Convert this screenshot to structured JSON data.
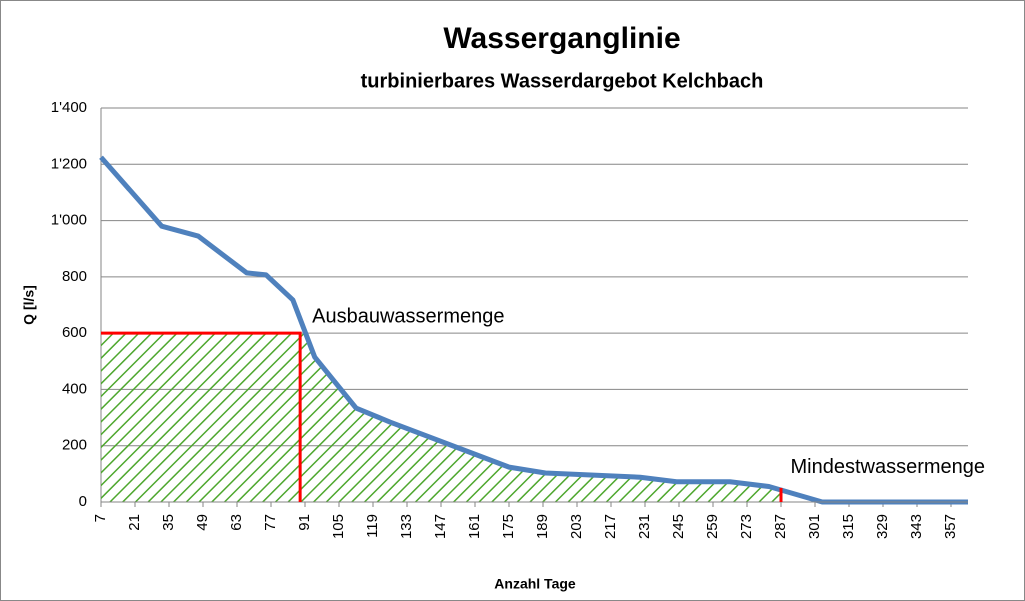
{
  "chart_data": {
    "type": "line",
    "title": "Wasserganglinie",
    "subtitle": "turbinierbares Wasserdargebot Kelchbach",
    "x_label": "Anzahl Tage",
    "y_label": "Q [l/s]",
    "x": [
      7,
      32,
      47,
      67,
      75,
      86,
      95,
      112,
      126,
      175,
      190,
      229,
      244,
      266,
      282,
      304,
      364
    ],
    "series": [
      {
        "name": "Q",
        "color": "#4f81bd",
        "values": [
          1225,
          980,
          945,
          814,
          807,
          718,
          515,
          334,
          284,
          124,
          103,
          88,
          72,
          72,
          55,
          0,
          0
        ]
      }
    ],
    "xlim": [
      7,
      364
    ],
    "xticks": [
      7,
      21,
      35,
      49,
      63,
      77,
      91,
      105,
      119,
      133,
      147,
      161,
      175,
      189,
      203,
      217,
      231,
      245,
      259,
      273,
      287,
      301,
      315,
      329,
      343,
      357
    ],
    "ylim": [
      0,
      1400
    ],
    "yticks": [
      0,
      200,
      400,
      600,
      800,
      {
        "value": 1000,
        "label": "1'000"
      },
      {
        "value": 1200,
        "label": "1'200"
      },
      {
        "value": 1400,
        "label": "1'400"
      }
    ],
    "grid": true,
    "annotations": [
      {
        "text": "Ausbauwassermenge",
        "x": 89,
        "y": 600,
        "color": "#ff0000"
      },
      {
        "text": "Mindestwassermenge",
        "x": 287,
        "y": 50,
        "color": "#ff0000"
      }
    ],
    "hatch_color": "#4ea72e"
  }
}
